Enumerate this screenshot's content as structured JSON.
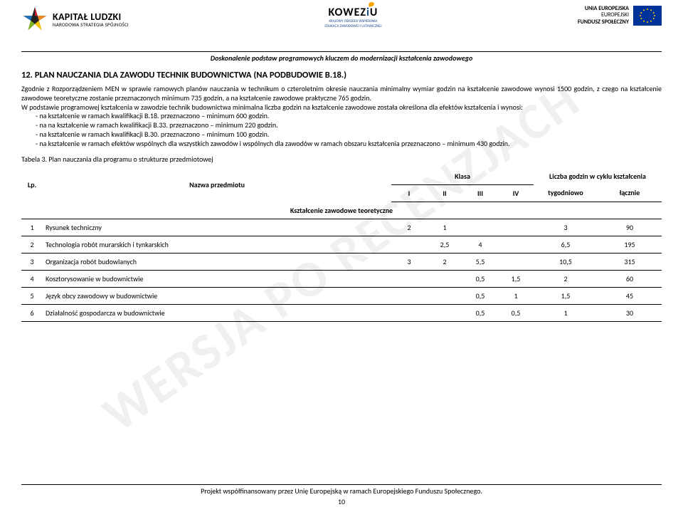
{
  "header": {
    "left": {
      "main": "KAPITAŁ LUDZKI",
      "sub": "NARODOWA STRATEGIA SPÓJNOŚCI"
    },
    "mid": {
      "brand": "KOWEZ",
      "brand_accent": "i",
      "brand_tail": "U",
      "sub1": "KRAJOWY OŚRODEK WSPIERANIA",
      "sub2": "EDUKACJI ZAWODOWEJ I USTAWICZNEJ"
    },
    "right": {
      "l1": "UNIA EUROPEJSKA",
      "l2": "EUROPEJSKI",
      "l3": "FUNDUSZ SPOŁECZNY"
    },
    "banner": "Doskonalenie podstaw programowych kluczem do modernizacji kształcenia zawodowego"
  },
  "watermark": "WERSJA PO RECENZJACH",
  "title": "12. PLAN NAUCZANIA DLA ZAWODU TECHNIK BUDOWNICTWA (NA PODBUDOWIE B.18.)",
  "para1": "Zgodnie z Rozporządzeniem MEN w sprawie ramowych planów nauczania w technikum o czteroletnim okresie nauczania minimalny wymiar godzin na kształcenie zawodowe wynosi 1500 godzin, z czego na kształcenie zawodowe teoretyczne zostanie przeznaczonych minimum 735 godzin, a na kształcenie zawodowe praktyczne 765 godzin.",
  "para2": "W podstawie programowej kształcenia w zawodzie technik budownictwa minimalna liczba godzin na kształcenie zawodowe została określona dla efektów kształcenia i wynosi:",
  "bullets": [
    "na kształcenie w ramach kwalifikacji B.18. przeznaczono – minimum 600 godzin.",
    "na na kształcenie w ramach kwalifikacji B.33. przeznaczono – minimum 220 godzin.",
    "na kształcenie w ramach kwalifikacji B.30. przeznaczono – minimum 100 godzin.",
    "na kształcenie w ramach efektów wspólnych dla wszystkich zawodów i wspólnych dla zawodów w ramach obszaru kształcenia przeznaczono – minimum 430 godzin."
  ],
  "tabela_label": "Tabela 3. Plan nauczania dla programu o strukturze przedmiotowej",
  "table": {
    "head": {
      "lp": "Lp.",
      "nazwa": "Nazwa przedmiotu",
      "klasa": "Klasa",
      "cycle": "Liczba godzin w cyklu kształcenia",
      "cols": [
        "I",
        "II",
        "III",
        "IV"
      ],
      "tyg": "tygodniowo",
      "lac": "łącznie"
    },
    "section": "Kształcenie zawodowe teoretyczne",
    "rows": [
      {
        "lp": "1",
        "name": "Rysunek techniczny",
        "c": [
          "2",
          "1",
          "",
          ""
        ],
        "tyg": "3",
        "lac": "90"
      },
      {
        "lp": "2",
        "name": "Technologia robót murarskich i tynkarskich",
        "c": [
          "",
          "2,5",
          "4",
          ""
        ],
        "tyg": "6,5",
        "lac": "195"
      },
      {
        "lp": "3",
        "name": "Organizacja robót budowlanych",
        "c": [
          "3",
          "2",
          "5,5",
          ""
        ],
        "tyg": "10,5",
        "lac": "315"
      },
      {
        "lp": "4",
        "name": "Kosztorysowanie w budownictwie",
        "c": [
          "",
          "",
          "0,5",
          "1,5"
        ],
        "tyg": "2",
        "lac": "60"
      },
      {
        "lp": "5",
        "name": "Język obcy zawodowy w budownictwie",
        "c": [
          "",
          "",
          "0,5",
          "1"
        ],
        "tyg": "1,5",
        "lac": "45"
      },
      {
        "lp": "6",
        "name": "Działalność gospodarcza w budownictwie",
        "c": [
          "",
          "",
          "0,5",
          "0,5"
        ],
        "tyg": "1",
        "lac": "30"
      }
    ]
  },
  "footer": {
    "text": "Projekt współfinansowany przez Unię Europejską w ramach Europejskiego Funduszu Społecznego.",
    "page": "10"
  },
  "colors": {
    "star_red": "#c9202b",
    "star_orange": "#f08a1d",
    "star_yellow": "#f7c400",
    "star_green": "#7ab51d",
    "star_blue": "#1f70b8",
    "star_dark": "#222",
    "eu_blue": "#003399",
    "eu_gold": "#ffcc00"
  }
}
